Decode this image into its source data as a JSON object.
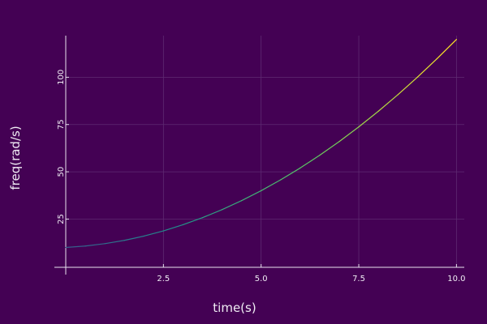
{
  "chart_data": {
    "type": "line",
    "title": "",
    "xlabel": "time(s)",
    "ylabel": "freq(rad/s)",
    "xlim": [
      0,
      10.2
    ],
    "ylim": [
      -0.5,
      122
    ],
    "xticks": [
      2.5,
      5.0,
      7.5,
      10.0
    ],
    "xtick_labels": [
      "2.5",
      "5.0",
      "7.5",
      "10.0"
    ],
    "yticks": [
      25,
      50,
      75,
      100
    ],
    "ytick_labels": [
      "25",
      "50",
      "75",
      "100"
    ],
    "grid": true,
    "legend": "none",
    "colormap": "viridis",
    "series": [
      {
        "x": [
          0,
          0.5,
          1,
          1.5,
          2,
          2.5,
          3,
          3.5,
          4,
          4.5,
          5,
          5.5,
          6,
          6.5,
          7,
          7.5,
          8,
          8.5,
          9,
          9.5,
          10
        ],
        "values": [
          10,
          10.75,
          12,
          13.75,
          16,
          18.75,
          22,
          25.75,
          30,
          34.75,
          40,
          45.75,
          52,
          58.75,
          66,
          73.75,
          82,
          90.75,
          100,
          109.75,
          120
        ]
      }
    ]
  },
  "colors": {
    "background": "#440154",
    "axis": "#e8e2ee",
    "grid": "#5e2a72",
    "text": "#f0ecf4"
  }
}
